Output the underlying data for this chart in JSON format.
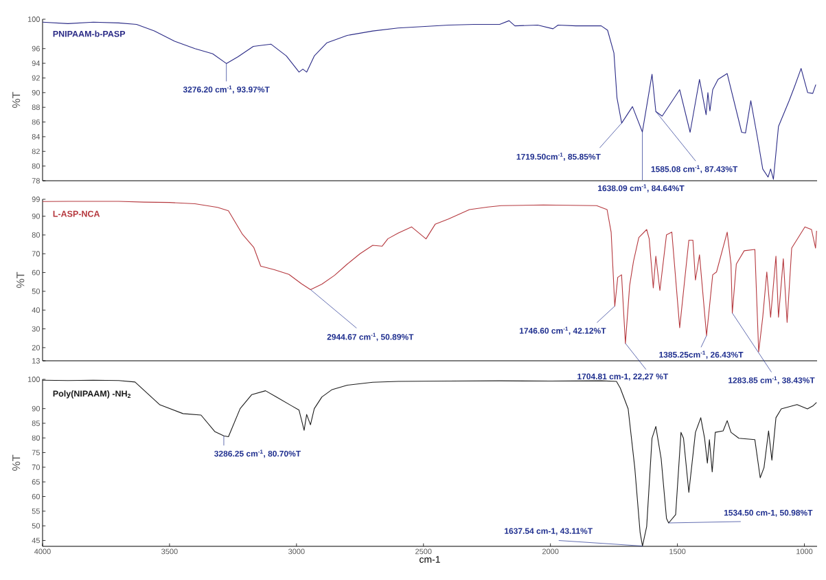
{
  "chart_data": [
    {
      "type": "line",
      "ylabel": "%T",
      "xlim": [
        4000,
        950
      ],
      "ylim": [
        78,
        100
      ],
      "yticks": [
        100,
        96,
        94,
        92,
        90,
        88,
        86,
        84,
        82,
        80,
        78
      ],
      "tick_labels": "y",
      "x": [
        4000,
        3900,
        3800,
        3700,
        3630,
        3560,
        3480,
        3400,
        3330,
        3276.2,
        3230,
        3170,
        3100,
        3040,
        2990,
        2975,
        2960,
        2930,
        2880,
        2800,
        2700,
        2600,
        2500,
        2400,
        2300,
        2200,
        2163,
        2140,
        2050,
        1990,
        1970,
        1900,
        1800,
        1775,
        1750,
        1738,
        1719.5,
        1677,
        1638.09,
        1600,
        1585.08,
        1560,
        1491,
        1450,
        1413,
        1387,
        1380,
        1372,
        1361,
        1340,
        1304,
        1247,
        1232,
        1211,
        1185,
        1164,
        1143,
        1133,
        1122,
        1102,
        1060,
        1039,
        1013,
        987,
        967,
        955
      ],
      "series": [
        {
          "name": "PNIPAAM-b-PASP",
          "color": "#2a2a86",
          "values": [
            99.6,
            99.4,
            99.6,
            99.5,
            99.3,
            98.4,
            97.0,
            96.0,
            95.3,
            93.97,
            94.9,
            96.3,
            96.6,
            95.0,
            92.8,
            93.2,
            92.8,
            95.0,
            96.8,
            97.8,
            98.4,
            98.8,
            99.0,
            99.2,
            99.3,
            99.3,
            99.8,
            99.1,
            99.2,
            98.7,
            99.2,
            99.1,
            99.1,
            98.5,
            95.4,
            89.3,
            85.85,
            88.1,
            84.64,
            92.5,
            87.43,
            86.8,
            90.4,
            84.6,
            91.8,
            87.0,
            90.0,
            87.5,
            90.4,
            91.8,
            92.6,
            84.6,
            84.5,
            88.9,
            83.9,
            79.6,
            78.5,
            79.6,
            78.2,
            85.4,
            88.9,
            90.8,
            93.3,
            90.0,
            89.9,
            91.1
          ]
        }
      ],
      "annotations": [
        {
          "text": "3276.20 cm$^{-1}$, 93.97%T",
          "x": 3276.2,
          "y": 93.97
        },
        {
          "text": "1719.50cm$^{-1}$, 85.85%T",
          "x": 1719.5,
          "y": 85.85
        },
        {
          "text": "1638.09 cm$^{-1}$, 84.64%T",
          "x": 1638.09,
          "y": 84.64
        },
        {
          "text": "1585.08 cm$^{-1}$, 87.43%T",
          "x": 1585.08,
          "y": 87.43
        }
      ]
    },
    {
      "type": "line",
      "ylabel": "%T",
      "xlim": [
        4000,
        950
      ],
      "ylim": [
        13,
        99
      ],
      "yticks": [
        99,
        90,
        80,
        70,
        60,
        50,
        40,
        30,
        20,
        13
      ],
      "tick_labels": "y",
      "x": [
        4000,
        3900,
        3800,
        3700,
        3600,
        3500,
        3400,
        3311,
        3268,
        3214,
        3168,
        3141,
        3087,
        3030,
        2980,
        2944.67,
        2900,
        2850,
        2800,
        2750,
        2700,
        2663,
        2640,
        2600,
        2547,
        2490,
        2454,
        2402,
        2319,
        2246,
        2194,
        2028,
        1818,
        1777,
        1761,
        1746.6,
        1735,
        1720,
        1704.81,
        1688,
        1673,
        1652,
        1621,
        1611,
        1595,
        1585,
        1569,
        1543,
        1522,
        1491,
        1455,
        1439,
        1429,
        1413,
        1385.25,
        1361,
        1346,
        1304,
        1289,
        1283.85,
        1268,
        1237,
        1195,
        1180,
        1164,
        1148,
        1133,
        1112,
        1102,
        1083,
        1068,
        1050,
        998,
        972,
        956,
        952
      ],
      "series": [
        {
          "name": "L-ASP-NCA",
          "color": "#b5383e",
          "values": [
            97.8,
            97.9,
            97.9,
            97.9,
            97.5,
            97.3,
            96.6,
            94.7,
            92.9,
            80.6,
            73.3,
            63.4,
            61.5,
            59.0,
            54.0,
            50.89,
            53.8,
            58.5,
            64.5,
            70.0,
            74.5,
            74.0,
            78.0,
            81.0,
            84.3,
            77.9,
            85.7,
            88.5,
            93.5,
            94.9,
            95.6,
            96.0,
            95.6,
            93.5,
            81.5,
            42.12,
            57.4,
            58.8,
            22.27,
            53.2,
            65.9,
            78.6,
            82.9,
            77.9,
            51.8,
            68.7,
            50.4,
            80.1,
            81.5,
            30.6,
            77.2,
            77.2,
            56.0,
            69.4,
            26.43,
            58.8,
            60.3,
            81.5,
            64.5,
            38.43,
            64.5,
            71.6,
            72.3,
            17.8,
            36.2,
            60.3,
            36.2,
            68.7,
            36.2,
            67.3,
            33.4,
            73.0,
            84.3,
            82.9,
            73.0,
            82.2
          ]
        }
      ],
      "annotations": [
        {
          "text": "2944.67 cm$^{-1}$, 50.89%T",
          "x": 2944.67,
          "y": 50.89
        },
        {
          "text": "1746.60 cm$^{-1}$, 42.12%T",
          "x": 1746.6,
          "y": 42.12
        },
        {
          "text": "1704.81 cm-1, 22,27 %T",
          "x": 1704.81,
          "y": 22.27
        },
        {
          "text": "1385.25cm$^{-1}$, 26.43%T",
          "x": 1385.25,
          "y": 26.43
        },
        {
          "text": "1283.85 cm$^{-1}$, 38.43%T",
          "x": 1283.85,
          "y": 38.43
        }
      ]
    },
    {
      "type": "line",
      "ylabel": "%T",
      "xlabel": "cm-1",
      "xlim": [
        4000,
        950
      ],
      "ylim": [
        43,
        100
      ],
      "yticks": [
        100,
        90,
        85,
        80,
        75,
        70,
        65,
        60,
        55,
        50,
        45
      ],
      "xticks": [
        4000,
        3500,
        3000,
        2500,
        2000,
        1500,
        1000
      ],
      "x": [
        4000,
        3900,
        3800,
        3700,
        3636,
        3538,
        3447,
        3376,
        3322,
        3286.25,
        3268,
        3222,
        3176,
        3122,
        3080,
        3020,
        2990,
        2970,
        2960,
        2945,
        2930,
        2900,
        2860,
        2800,
        2700,
        2600,
        2400,
        2200,
        2000,
        1800,
        1740,
        1725,
        1694,
        1668,
        1647,
        1637.54,
        1621,
        1600,
        1585,
        1564,
        1543,
        1534.5,
        1507,
        1486,
        1476,
        1455,
        1429,
        1408,
        1393,
        1382,
        1374,
        1363,
        1351,
        1320,
        1304,
        1289,
        1258,
        1195,
        1174,
        1159,
        1141,
        1128,
        1112,
        1091,
        1029,
        988,
        967,
        952
      ],
      "series": [
        {
          "name": "Poly(NIPAAM) -NH$_{2}$",
          "color": "#1a1a1a",
          "values": [
            99.7,
            99.6,
            99.7,
            99.6,
            99.1,
            91.3,
            88.3,
            87.8,
            82.2,
            80.7,
            80.4,
            90.0,
            94.8,
            96.1,
            94.0,
            91.0,
            89.5,
            82.6,
            88.0,
            84.5,
            90.0,
            94.0,
            96.5,
            98.0,
            99.0,
            99.3,
            99.4,
            99.5,
            99.4,
            99.5,
            99.3,
            97.0,
            89.9,
            69.9,
            47.8,
            43.11,
            49.8,
            79.9,
            83.9,
            72.9,
            52.5,
            50.98,
            53.8,
            81.9,
            79.9,
            61.4,
            81.9,
            86.9,
            79.9,
            71.4,
            79.4,
            68.4,
            81.9,
            82.4,
            85.9,
            81.9,
            79.9,
            79.4,
            66.4,
            69.9,
            82.4,
            72.4,
            86.9,
            89.9,
            91.4,
            89.9,
            90.9,
            92.1
          ]
        }
      ],
      "annotations": [
        {
          "text": "3286.25 cm$^{-1}$, 80.70%T",
          "x": 3286.25,
          "y": 80.7
        },
        {
          "text": "1637.54 cm-1, 43.11%T",
          "x": 1637.54,
          "y": 43.11
        },
        {
          "text": "1534.50 cm-1, 50.98%T",
          "x": 1534.5,
          "y": 50.98
        }
      ]
    }
  ]
}
